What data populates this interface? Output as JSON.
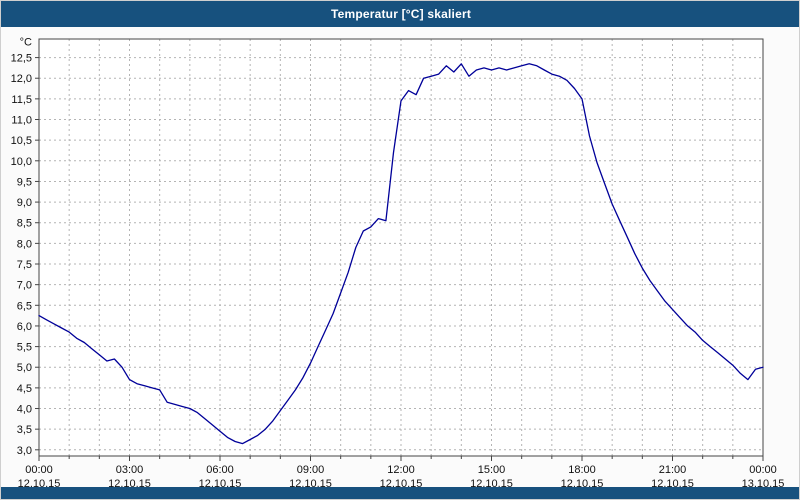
{
  "window": {
    "title": "Temperatur [°C] skaliert"
  },
  "colors": {
    "titlebar_bg": "#17517e",
    "titlebar_fg": "#ffffff",
    "line": "#000099",
    "grid": "#b4b4b4",
    "axis": "#444444",
    "label": "#111111",
    "plot_bg": "#ffffff"
  },
  "chart_data": {
    "type": "line",
    "title": "Temperatur [°C] skaliert",
    "xlabel": "",
    "ylabel": "°C",
    "xlim_hours": [
      0,
      24
    ],
    "ylim": [
      3.0,
      12.5
    ],
    "ytick_step": 0.5,
    "grid": "dashed",
    "legend": "none",
    "yticks": [
      {
        "v": 12.5,
        "label": "12,5"
      },
      {
        "v": 12.0,
        "label": "12,0"
      },
      {
        "v": 11.5,
        "label": "11,5"
      },
      {
        "v": 11.0,
        "label": "11,0"
      },
      {
        "v": 10.5,
        "label": "10,5"
      },
      {
        "v": 10.0,
        "label": "10,0"
      },
      {
        "v": 9.5,
        "label": "9,5"
      },
      {
        "v": 9.0,
        "label": "9,0"
      },
      {
        "v": 8.5,
        "label": "8,5"
      },
      {
        "v": 8.0,
        "label": "8,0"
      },
      {
        "v": 7.5,
        "label": "7,5"
      },
      {
        "v": 7.0,
        "label": "7,0"
      },
      {
        "v": 6.5,
        "label": "6,5"
      },
      {
        "v": 6.0,
        "label": "6,0"
      },
      {
        "v": 5.5,
        "label": "5,5"
      },
      {
        "v": 5.0,
        "label": "5,0"
      },
      {
        "v": 4.5,
        "label": "4,5"
      },
      {
        "v": 4.0,
        "label": "4,0"
      },
      {
        "v": 3.5,
        "label": "3,5"
      },
      {
        "v": 3.0,
        "label": "3,0"
      }
    ],
    "xticks": [
      {
        "h": 0,
        "time": "00:00",
        "date": "12.10.15"
      },
      {
        "h": 3,
        "time": "03:00",
        "date": "12.10.15"
      },
      {
        "h": 6,
        "time": "06:00",
        "date": "12.10.15"
      },
      {
        "h": 9,
        "time": "09:00",
        "date": "12.10.15"
      },
      {
        "h": 12,
        "time": "12:00",
        "date": "12.10.15"
      },
      {
        "h": 15,
        "time": "15:00",
        "date": "12.10.15"
      },
      {
        "h": 18,
        "time": "18:00",
        "date": "12.10.15"
      },
      {
        "h": 21,
        "time": "21:00",
        "date": "12.10.15"
      },
      {
        "h": 24,
        "time": "00:00",
        "date": "13.10.15"
      }
    ],
    "minor_x_gridline_step_hours": 1,
    "series": [
      {
        "name": "Temperatur [°C]",
        "color": "#000099",
        "x_start_hours": 0,
        "x_step_hours": 0.25,
        "values": [
          6.25,
          6.15,
          6.05,
          5.95,
          5.85,
          5.7,
          5.6,
          5.45,
          5.3,
          5.15,
          5.2,
          5.0,
          4.7,
          4.6,
          4.55,
          4.5,
          4.45,
          4.15,
          4.1,
          4.05,
          4.0,
          3.9,
          3.75,
          3.6,
          3.45,
          3.3,
          3.2,
          3.15,
          3.25,
          3.35,
          3.5,
          3.7,
          3.95,
          4.2,
          4.45,
          4.75,
          5.1,
          5.5,
          5.9,
          6.3,
          6.8,
          7.3,
          7.9,
          8.3,
          8.4,
          8.6,
          8.55,
          10.2,
          11.45,
          11.7,
          11.6,
          12.0,
          12.05,
          12.1,
          12.3,
          12.15,
          12.35,
          12.05,
          12.2,
          12.25,
          12.2,
          12.25,
          12.2,
          12.25,
          12.3,
          12.35,
          12.3,
          12.2,
          12.1,
          12.05,
          11.95,
          11.75,
          11.5,
          10.6,
          9.95,
          9.45,
          8.95,
          8.55,
          8.15,
          7.75,
          7.4,
          7.1,
          6.85,
          6.6,
          6.4,
          6.2,
          6.0,
          5.85,
          5.65,
          5.5,
          5.35,
          5.2,
          5.05,
          4.85,
          4.7,
          4.95,
          5.0
        ]
      }
    ]
  }
}
